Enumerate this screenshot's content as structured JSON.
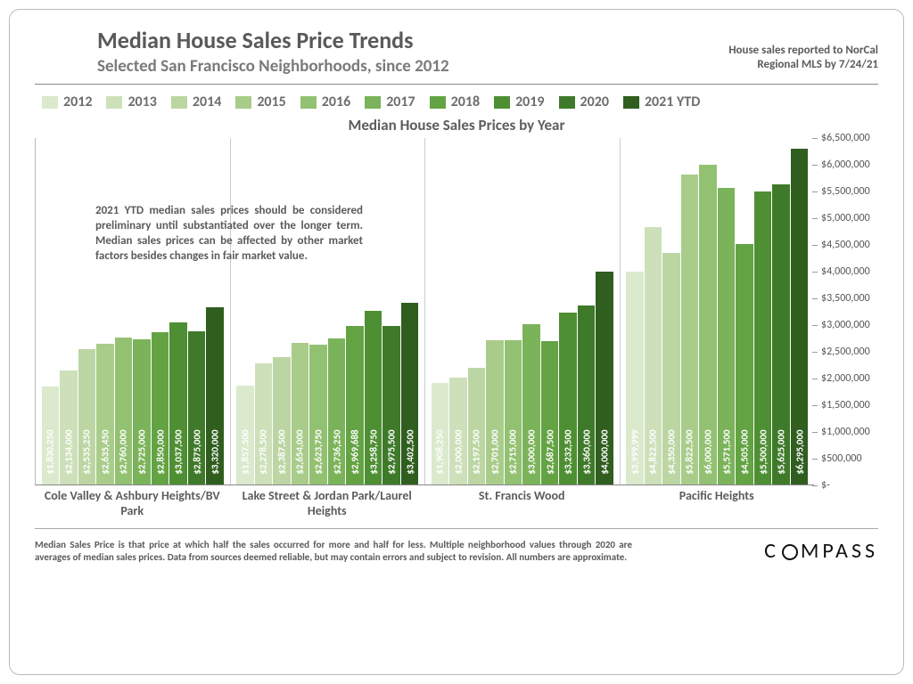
{
  "header": {
    "title": "Median House Sales Price Trends",
    "subtitle": "Selected San Francisco Neighborhoods, since 2012",
    "source_line1": "House sales reported to NorCal",
    "source_line2": "Regional MLS by 7/24/21"
  },
  "legend": {
    "items": [
      {
        "label": "2012",
        "color": "#dbe9cd"
      },
      {
        "label": "2013",
        "color": "#cde0ba"
      },
      {
        "label": "2014",
        "color": "#bcd6a3"
      },
      {
        "label": "2015",
        "color": "#a9cc8b"
      },
      {
        "label": "2016",
        "color": "#93c172"
      },
      {
        "label": "2017",
        "color": "#7bb35a"
      },
      {
        "label": "2018",
        "color": "#64a344"
      },
      {
        "label": "2019",
        "color": "#4f8f34"
      },
      {
        "label": "2020",
        "color": "#3f7a2a"
      },
      {
        "label": "2021 YTD",
        "color": "#2f5e1f"
      }
    ]
  },
  "chart": {
    "type": "grouped-bar",
    "title": "Median House Sales Prices by Year",
    "ylim_min": 0,
    "ylim_max": 6500000,
    "ytick_step": 500000,
    "y_axis_side": "right",
    "background_color": "#ffffff",
    "axis_color": "#888888",
    "label_rotation_deg": -90,
    "bar_label_color": "#ffffff",
    "bar_label_fontsize": 11,
    "groups": [
      {
        "name": "Cole Valley & Ashbury Heights/BV Park",
        "values": [
          1830250,
          2134000,
          2535250,
          2635450,
          2760000,
          2725000,
          2850000,
          3037500,
          2875000,
          3320000
        ],
        "labels": [
          "$1,830,250",
          "$2,134,000",
          "$2,535,250",
          "$2,635,450",
          "$2,760,000",
          "$2,725,000",
          "$2,850,000",
          "$3,037,500",
          "$2,875,000",
          "$3,320,000"
        ]
      },
      {
        "name": "Lake Street & Jordan Park/Laurel Heights",
        "values": [
          1857500,
          2278500,
          2387500,
          2654000,
          2623750,
          2736250,
          2969688,
          3258750,
          2975500,
          3402500
        ],
        "labels": [
          "$1,857,500",
          "$2,278,500",
          "$2,387,500",
          "$2,654,000",
          "$2,623,750",
          "$2,736,250",
          "$2,969,688",
          "$3,258,750",
          "$2,975,500",
          "$3,402,500"
        ]
      },
      {
        "name": "St. Francis Wood",
        "values": [
          1908250,
          2000000,
          2197500,
          2701000,
          2715000,
          3000000,
          2687500,
          3232500,
          3360000,
          4000000
        ],
        "labels": [
          "$1,908,250",
          "$2,000,000",
          "$2,197,500",
          "$2,701,000",
          "$2,715,000",
          "$3,000,000",
          "$2,687,500",
          "$3,232,500",
          "$3,360,000",
          "$4,000,000"
        ]
      },
      {
        "name": "Pacific Heights",
        "values": [
          3999999,
          4822500,
          4350000,
          5822500,
          6000000,
          5571500,
          4505000,
          5500000,
          5625000,
          6295000
        ],
        "labels": [
          "$3,999,999",
          "$4,822,500",
          "$4,350,000",
          "$5,822,500",
          "$6,000,000",
          "$5,571,500",
          "$4,505,000",
          "$5,500,000",
          "$5,625,000",
          "$6,295,000"
        ]
      }
    ]
  },
  "note": "2021 YTD median sales prices should be considered preliminary until substantiated over the longer term. Median sales prices can be affected by other market factors besides changes in fair market value.",
  "disclaimer": "Median Sales Price is that price at which half the sales occurred for more and half for less. Multiple neighborhood values through 2020 are averages of median sales prices. Data from sources deemed reliable, but may contain errors and subject to revision.  All numbers are approximate.",
  "logo": {
    "pre": "C",
    "post": "MPASS"
  }
}
